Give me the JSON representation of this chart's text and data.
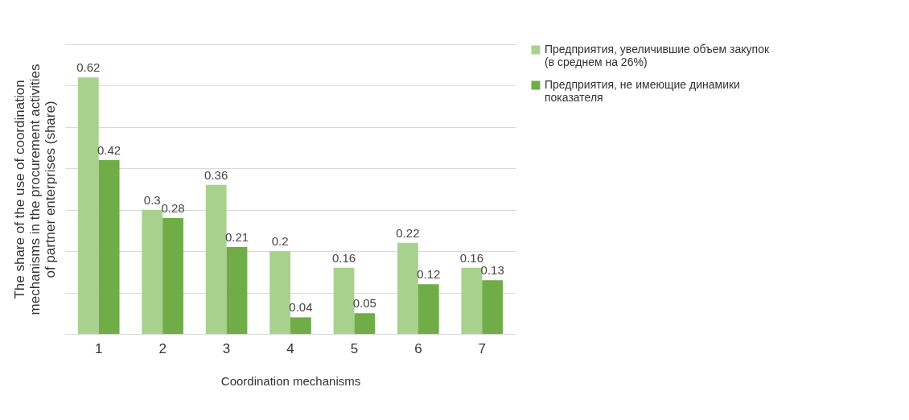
{
  "chart_data": {
    "type": "bar",
    "xlabel": "Coordination mechanisms",
    "ylabel": "The share of the use of coordination mechanisms in the procurement activities of partner enterprises (share)",
    "categories": [
      "1",
      "2",
      "3",
      "4",
      "5",
      "6",
      "7"
    ],
    "series": [
      {
        "name": "Предприятия,  увеличившие  объем закупок  (в  среднем на  26%)",
        "color": "#a9d18e",
        "values": [
          0.62,
          0.3,
          0.36,
          0.2,
          0.16,
          0.22,
          0.16
        ]
      },
      {
        "name": "Предприятия, не имеющие динамики показателя",
        "color": "#70ad47",
        "values": [
          0.42,
          0.28,
          0.21,
          0.04,
          0.05,
          0.12,
          0.13
        ]
      }
    ],
    "ylim": [
      0,
      0.7
    ],
    "yticks": [
      0,
      0.1,
      0.2,
      0.3,
      0.4,
      0.5,
      0.6,
      0.7
    ],
    "tick_labels": "x",
    "grid": "y",
    "legend": "right",
    "data_labels": true
  }
}
